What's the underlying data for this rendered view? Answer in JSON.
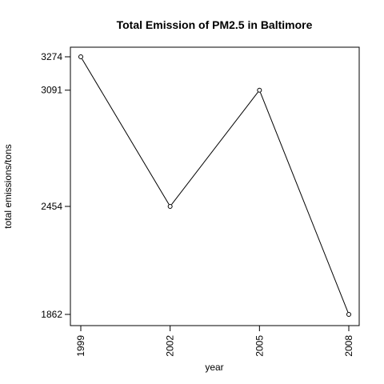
{
  "chart_data": {
    "type": "line",
    "title": "Total Emission of PM2.5 in Baltimore",
    "xlabel": "year",
    "ylabel": "total emissions/tons",
    "x": [
      1999,
      2002,
      2005,
      2008
    ],
    "x_tick_labels": [
      "1999",
      "2002",
      "2005",
      "2008"
    ],
    "y": [
      3274,
      2454,
      3091,
      1862
    ],
    "y_tick_values": [
      1862,
      2454,
      3091,
      3274
    ],
    "y_tick_labels": [
      "1862",
      "2454",
      "3091",
      "3274"
    ],
    "xlim": [
      1999,
      2008
    ],
    "ylim": [
      1862,
      3274
    ],
    "grid": false,
    "markers": "open-circle",
    "line_color": "#000000"
  }
}
